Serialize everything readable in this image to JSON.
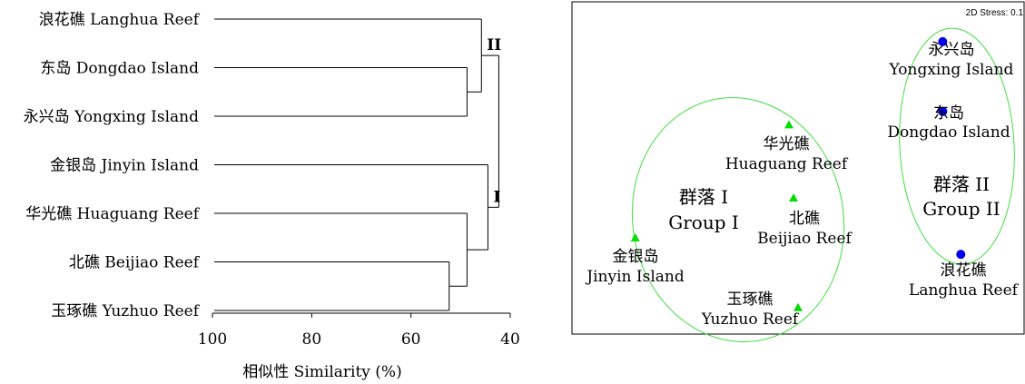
{
  "chart_data": [
    {
      "type": "dendrogram",
      "xlabel": "相似性  Similarity (%)",
      "xlim": [
        100,
        40
      ],
      "xticks": [
        100,
        80,
        60,
        40
      ],
      "leaves": [
        "浪花礁  Langhua  Reef",
        "东岛  Dongdao  Island",
        "永兴岛  Yongxing  Island",
        "金银岛  Jinyin  Island",
        "华光礁  Huaguang Reef",
        "北礁  Beijiao  Reef",
        "玉琢礁  Yuzhuo Reef"
      ],
      "merges": [
        {
          "left": "leaf:5",
          "right": "leaf:6",
          "similarity": 52.3
        },
        {
          "left": "leaf:4",
          "right": "m0",
          "similarity": 48.7
        },
        {
          "left": "leaf:1",
          "right": "leaf:2",
          "similarity": 48.7
        },
        {
          "left": "leaf:3",
          "right": "m1",
          "similarity": 44.5
        },
        {
          "left": "leaf:0",
          "right": "m2",
          "similarity": 45.8
        },
        {
          "left": "m4",
          "right": "m3",
          "similarity": 42.3
        }
      ],
      "cluster_labels": [
        {
          "text": "II",
          "cluster": "m4"
        },
        {
          "text": "I",
          "cluster": "m3"
        }
      ]
    },
    {
      "type": "scatter",
      "stress_label": "2D Stress: 0.1",
      "points": [
        {
          "name": "永兴岛",
          "name_en": "Yongxing Island",
          "group": "II",
          "marker": "circle",
          "x": 0.82,
          "y": 0.88
        },
        {
          "name": "东岛",
          "name_en": "Dongdao Island",
          "group": "II",
          "marker": "circle",
          "x": 0.82,
          "y": 0.67
        },
        {
          "name": "浪花礁",
          "name_en": "Langhua Reef",
          "group": "II",
          "marker": "circle",
          "x": 0.86,
          "y": 0.24
        },
        {
          "name": "华光礁",
          "name_en": "Huaguang Reef",
          "group": "I",
          "marker": "triangle",
          "x": 0.48,
          "y": 0.63
        },
        {
          "name": "北礁",
          "name_en": "Beijiao Reef",
          "group": "I",
          "marker": "triangle",
          "x": 0.49,
          "y": 0.41
        },
        {
          "name": "金银岛",
          "name_en": "Jinyin Island",
          "group": "I",
          "marker": "triangle",
          "x": 0.14,
          "y": 0.29
        },
        {
          "name": "玉琢礁",
          "name_en": "Yuzhuo Reef",
          "group": "I",
          "marker": "triangle",
          "x": 0.5,
          "y": 0.08
        }
      ],
      "groups": [
        {
          "id": "I",
          "label_cn": "群落 I",
          "label_en": "Group I"
        },
        {
          "id": "II",
          "label_cn": "群落 II",
          "label_en": "Group II"
        }
      ],
      "colors": {
        "group_I": "#00dd00",
        "group_II": "#0000ee",
        "ellipse": "#44dd44"
      }
    }
  ]
}
